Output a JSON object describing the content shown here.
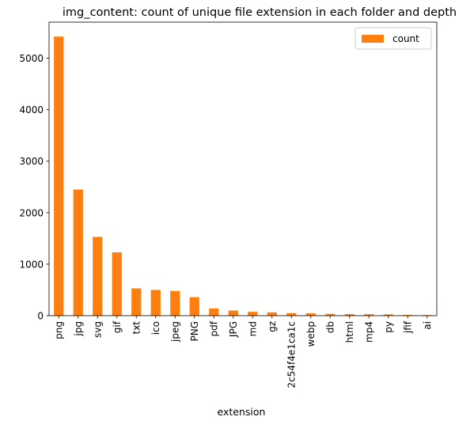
{
  "chart_data": {
    "type": "bar",
    "title": "img_content: count of unique file extension in each folder and depth",
    "xlabel": "extension",
    "ylabel": "",
    "ylim": [
      0,
      5700
    ],
    "yticks": [
      0,
      1000,
      2000,
      3000,
      4000,
      5000
    ],
    "legend_position": "top-right",
    "grid": false,
    "categories": [
      "png",
      "jpg",
      "svg",
      "gif",
      "txt",
      "ico",
      "jpeg",
      "PNG",
      "pdf",
      "JPG",
      "md",
      "gz",
      "2c54f4e1ca1c",
      "webp",
      "db",
      "html",
      "mp4",
      "py",
      "jfif",
      "ai"
    ],
    "series": [
      {
        "name": "count",
        "color": "#ff7f0e",
        "values": [
          5420,
          2450,
          1530,
          1230,
          530,
          500,
          480,
          360,
          140,
          100,
          75,
          65,
          50,
          45,
          35,
          30,
          28,
          25,
          15,
          12
        ]
      }
    ]
  }
}
